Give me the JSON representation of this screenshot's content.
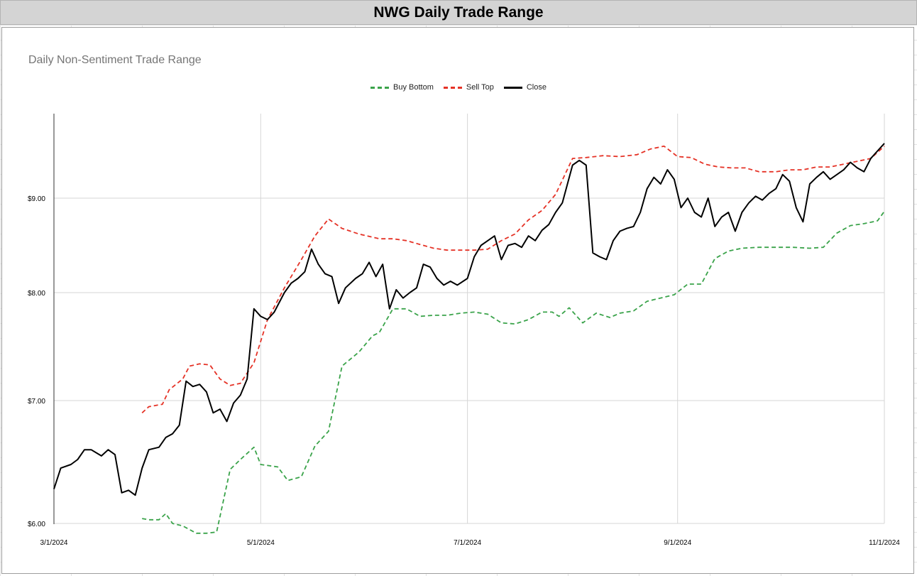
{
  "header": {
    "title": "NWG Daily Trade Range"
  },
  "chart_data": {
    "type": "line",
    "title": "Daily Non-Sentiment Trade Range",
    "xlabel": "",
    "ylabel": "",
    "x_ticks": [
      "3/1/2024",
      "5/1/2024",
      "7/1/2024",
      "9/1/2024",
      "11/1/2024"
    ],
    "y_ticks": [
      "$6.00",
      "$7.00",
      "$8.00",
      "$9.00"
    ],
    "ylim": [
      6.0,
      9.7
    ],
    "grid": true,
    "legend_position": "top",
    "series": [
      {
        "name": "Buy Bottom",
        "color": "#3aa34a",
        "style": "dashed",
        "points": [
          [
            "3/27/2024",
            6.04
          ],
          [
            "3/29/2024",
            6.03
          ],
          [
            "4/1/2024",
            6.03
          ],
          [
            "4/3/2024",
            6.08
          ],
          [
            "4/5/2024",
            6.0
          ],
          [
            "4/8/2024",
            5.98
          ],
          [
            "4/10/2024",
            5.95
          ],
          [
            "4/12/2024",
            5.92
          ],
          [
            "4/15/2024",
            5.92
          ],
          [
            "4/18/2024",
            5.93
          ],
          [
            "4/22/2024",
            6.44
          ],
          [
            "4/25/2024",
            6.52
          ],
          [
            "4/29/2024",
            6.62
          ],
          [
            "5/1/2024",
            6.48
          ],
          [
            "5/6/2024",
            6.46
          ],
          [
            "5/9/2024",
            6.35
          ],
          [
            "5/13/2024",
            6.38
          ],
          [
            "5/17/2024",
            6.63
          ],
          [
            "5/21/2024",
            6.75
          ],
          [
            "5/25/2024",
            7.32
          ],
          [
            "5/30/2024",
            7.45
          ],
          [
            "6/3/2024",
            7.6
          ],
          [
            "6/5/2024",
            7.63
          ],
          [
            "6/9/2024",
            7.85
          ],
          [
            "6/13/2024",
            7.85
          ],
          [
            "6/17/2024",
            7.78
          ],
          [
            "6/21/2024",
            7.79
          ],
          [
            "6/25/2024",
            7.79
          ],
          [
            "6/29/2024",
            7.81
          ],
          [
            "7/3/2024",
            7.82
          ],
          [
            "7/7/2024",
            7.8
          ],
          [
            "7/11/2024",
            7.72
          ],
          [
            "7/15/2024",
            7.71
          ],
          [
            "7/19/2024",
            7.75
          ],
          [
            "7/23/2024",
            7.82
          ],
          [
            "7/26/2024",
            7.82
          ],
          [
            "7/28/2024",
            7.78
          ],
          [
            "7/31/2024",
            7.86
          ],
          [
            "8/4/2024",
            7.72
          ],
          [
            "8/8/2024",
            7.81
          ],
          [
            "8/12/2024",
            7.77
          ],
          [
            "8/15/2024",
            7.81
          ],
          [
            "8/19/2024",
            7.83
          ],
          [
            "8/23/2024",
            7.92
          ],
          [
            "8/27/2024",
            7.95
          ],
          [
            "8/31/2024",
            7.98
          ],
          [
            "9/4/2024",
            8.09
          ],
          [
            "9/8/2024",
            8.09
          ],
          [
            "9/12/2024",
            8.36
          ],
          [
            "9/16/2024",
            8.44
          ],
          [
            "9/20/2024",
            8.47
          ],
          [
            "9/25/2024",
            8.48
          ],
          [
            "9/30/2024",
            8.48
          ],
          [
            "10/5/2024",
            8.48
          ],
          [
            "10/10/2024",
            8.47
          ],
          [
            "10/14/2024",
            8.48
          ],
          [
            "10/18/2024",
            8.63
          ],
          [
            "10/22/2024",
            8.71
          ],
          [
            "10/26/2024",
            8.73
          ],
          [
            "10/30/2024",
            8.76
          ],
          [
            "11/1/2024",
            8.86
          ]
        ]
      },
      {
        "name": "Sell Top",
        "color": "#e53226",
        "style": "dashed",
        "points": [
          [
            "3/27/2024",
            6.9
          ],
          [
            "3/29/2024",
            6.95
          ],
          [
            "4/2/2024",
            6.97
          ],
          [
            "4/4/2024",
            7.1
          ],
          [
            "4/8/2024",
            7.2
          ],
          [
            "4/10/2024",
            7.32
          ],
          [
            "4/13/2024",
            7.34
          ],
          [
            "4/16/2024",
            7.33
          ],
          [
            "4/19/2024",
            7.2
          ],
          [
            "4/22/2024",
            7.14
          ],
          [
            "4/25/2024",
            7.16
          ],
          [
            "4/29/2024",
            7.35
          ],
          [
            "5/3/2024",
            7.75
          ],
          [
            "5/8/2024",
            8.05
          ],
          [
            "5/13/2024",
            8.35
          ],
          [
            "5/17/2024",
            8.6
          ],
          [
            "5/21/2024",
            8.78
          ],
          [
            "5/25/2024",
            8.68
          ],
          [
            "5/30/2024",
            8.62
          ],
          [
            "6/5/2024",
            8.57
          ],
          [
            "6/9/2024",
            8.57
          ],
          [
            "6/13/2024",
            8.55
          ],
          [
            "6/17/2024",
            8.51
          ],
          [
            "6/21/2024",
            8.47
          ],
          [
            "6/25/2024",
            8.45
          ],
          [
            "6/29/2024",
            8.45
          ],
          [
            "7/3/2024",
            8.45
          ],
          [
            "7/7/2024",
            8.46
          ],
          [
            "7/11/2024",
            8.55
          ],
          [
            "7/15/2024",
            8.62
          ],
          [
            "7/19/2024",
            8.77
          ],
          [
            "7/23/2024",
            8.87
          ],
          [
            "7/27/2024",
            9.04
          ],
          [
            "8/1/2024",
            9.42
          ],
          [
            "8/5/2024",
            9.43
          ],
          [
            "8/10/2024",
            9.45
          ],
          [
            "8/15/2024",
            9.44
          ],
          [
            "8/20/2024",
            9.46
          ],
          [
            "8/24/2024",
            9.52
          ],
          [
            "8/28/2024",
            9.55
          ],
          [
            "9/1/2024",
            9.44
          ],
          [
            "9/5/2024",
            9.43
          ],
          [
            "9/9/2024",
            9.36
          ],
          [
            "9/13/2024",
            9.33
          ],
          [
            "9/17/2024",
            9.32
          ],
          [
            "9/21/2024",
            9.32
          ],
          [
            "9/25/2024",
            9.28
          ],
          [
            "9/30/2024",
            9.28
          ],
          [
            "10/4/2024",
            9.3
          ],
          [
            "10/8/2024",
            9.3
          ],
          [
            "10/12/2024",
            9.33
          ],
          [
            "10/16/2024",
            9.33
          ],
          [
            "10/20/2024",
            9.36
          ],
          [
            "10/24/2024",
            9.39
          ],
          [
            "10/28/2024",
            9.42
          ],
          [
            "11/1/2024",
            9.55
          ]
        ]
      },
      {
        "name": "Close",
        "color": "#000000",
        "style": "solid",
        "points": [
          [
            "3/1/2024",
            6.28
          ],
          [
            "3/3/2024",
            6.45
          ],
          [
            "3/6/2024",
            6.48
          ],
          [
            "3/8/2024",
            6.52
          ],
          [
            "3/10/2024",
            6.6
          ],
          [
            "3/12/2024",
            6.6
          ],
          [
            "3/15/2024",
            6.55
          ],
          [
            "3/17/2024",
            6.6
          ],
          [
            "3/19/2024",
            6.56
          ],
          [
            "3/21/2024",
            6.25
          ],
          [
            "3/23/2024",
            6.27
          ],
          [
            "3/25/2024",
            6.23
          ],
          [
            "3/27/2024",
            6.45
          ],
          [
            "3/29/2024",
            6.6
          ],
          [
            "4/1/2024",
            6.62
          ],
          [
            "4/3/2024",
            6.7
          ],
          [
            "4/5/2024",
            6.73
          ],
          [
            "4/7/2024",
            6.8
          ],
          [
            "4/9/2024",
            7.18
          ],
          [
            "4/11/2024",
            7.13
          ],
          [
            "4/13/2024",
            7.15
          ],
          [
            "4/15/2024",
            7.08
          ],
          [
            "4/17/2024",
            6.9
          ],
          [
            "4/19/2024",
            6.93
          ],
          [
            "4/21/2024",
            6.83
          ],
          [
            "4/23/2024",
            6.98
          ],
          [
            "4/25/2024",
            7.05
          ],
          [
            "4/27/2024",
            7.2
          ],
          [
            "4/29/2024",
            7.85
          ],
          [
            "5/1/2024",
            7.78
          ],
          [
            "5/3/2024",
            7.75
          ],
          [
            "5/5/2024",
            7.82
          ],
          [
            "5/8/2024",
            8.0
          ],
          [
            "5/10/2024",
            8.1
          ],
          [
            "5/12/2024",
            8.15
          ],
          [
            "5/14/2024",
            8.22
          ],
          [
            "5/16/2024",
            8.46
          ],
          [
            "5/18/2024",
            8.3
          ],
          [
            "5/20/2024",
            8.2
          ],
          [
            "5/22/2024",
            8.17
          ],
          [
            "5/24/2024",
            7.9
          ],
          [
            "5/26/2024",
            8.05
          ],
          [
            "5/29/2024",
            8.15
          ],
          [
            "5/31/2024",
            8.2
          ],
          [
            "6/2/2024",
            8.32
          ],
          [
            "6/4/2024",
            8.17
          ],
          [
            "6/6/2024",
            8.3
          ],
          [
            "6/8/2024",
            7.85
          ],
          [
            "6/10/2024",
            8.03
          ],
          [
            "6/12/2024",
            7.95
          ],
          [
            "6/14/2024",
            8.0
          ],
          [
            "6/16/2024",
            8.05
          ],
          [
            "6/18/2024",
            8.3
          ],
          [
            "6/20/2024",
            8.27
          ],
          [
            "6/22/2024",
            8.15
          ],
          [
            "6/24/2024",
            8.08
          ],
          [
            "6/26/2024",
            8.12
          ],
          [
            "6/28/2024",
            8.08
          ],
          [
            "7/1/2024",
            8.15
          ],
          [
            "7/3/2024",
            8.38
          ],
          [
            "7/5/2024",
            8.5
          ],
          [
            "7/7/2024",
            8.55
          ],
          [
            "7/9/2024",
            8.6
          ],
          [
            "7/11/2024",
            8.35
          ],
          [
            "7/13/2024",
            8.5
          ],
          [
            "7/15/2024",
            8.52
          ],
          [
            "7/17/2024",
            8.48
          ],
          [
            "7/19/2024",
            8.6
          ],
          [
            "7/21/2024",
            8.55
          ],
          [
            "7/23/2024",
            8.66
          ],
          [
            "7/25/2024",
            8.72
          ],
          [
            "7/27/2024",
            8.85
          ],
          [
            "7/29/2024",
            8.95
          ],
          [
            "8/1/2024",
            9.35
          ],
          [
            "8/3/2024",
            9.4
          ],
          [
            "8/5/2024",
            9.35
          ],
          [
            "8/7/2024",
            8.42
          ],
          [
            "8/9/2024",
            8.38
          ],
          [
            "8/11/2024",
            8.35
          ],
          [
            "8/13/2024",
            8.55
          ],
          [
            "8/15/2024",
            8.65
          ],
          [
            "8/17/2024",
            8.68
          ],
          [
            "8/19/2024",
            8.7
          ],
          [
            "8/21/2024",
            8.85
          ],
          [
            "8/23/2024",
            9.1
          ],
          [
            "8/25/2024",
            9.22
          ],
          [
            "8/27/2024",
            9.15
          ],
          [
            "8/29/2024",
            9.3
          ],
          [
            "8/31/2024",
            9.2
          ],
          [
            "9/2/2024",
            8.9
          ],
          [
            "9/4/2024",
            9.0
          ],
          [
            "9/6/2024",
            8.85
          ],
          [
            "9/8/2024",
            8.8
          ],
          [
            "9/10/2024",
            9.0
          ],
          [
            "9/12/2024",
            8.7
          ],
          [
            "9/14/2024",
            8.8
          ],
          [
            "9/16/2024",
            8.85
          ],
          [
            "9/18/2024",
            8.65
          ],
          [
            "9/20/2024",
            8.85
          ],
          [
            "9/22/2024",
            8.95
          ],
          [
            "9/24/2024",
            9.02
          ],
          [
            "9/26/2024",
            8.98
          ],
          [
            "9/28/2024",
            9.05
          ],
          [
            "9/30/2024",
            9.1
          ],
          [
            "10/2/2024",
            9.25
          ],
          [
            "10/4/2024",
            9.18
          ],
          [
            "10/6/2024",
            8.9
          ],
          [
            "10/8/2024",
            8.75
          ],
          [
            "10/10/2024",
            9.15
          ],
          [
            "10/12/2024",
            9.22
          ],
          [
            "10/14/2024",
            9.28
          ],
          [
            "10/16/2024",
            9.2
          ],
          [
            "10/18/2024",
            9.25
          ],
          [
            "10/20/2024",
            9.3
          ],
          [
            "10/22/2024",
            9.38
          ],
          [
            "10/24/2024",
            9.32
          ],
          [
            "10/26/2024",
            9.28
          ],
          [
            "10/28/2024",
            9.42
          ],
          [
            "10/30/2024",
            9.5
          ],
          [
            "11/1/2024",
            9.58
          ]
        ]
      }
    ]
  }
}
